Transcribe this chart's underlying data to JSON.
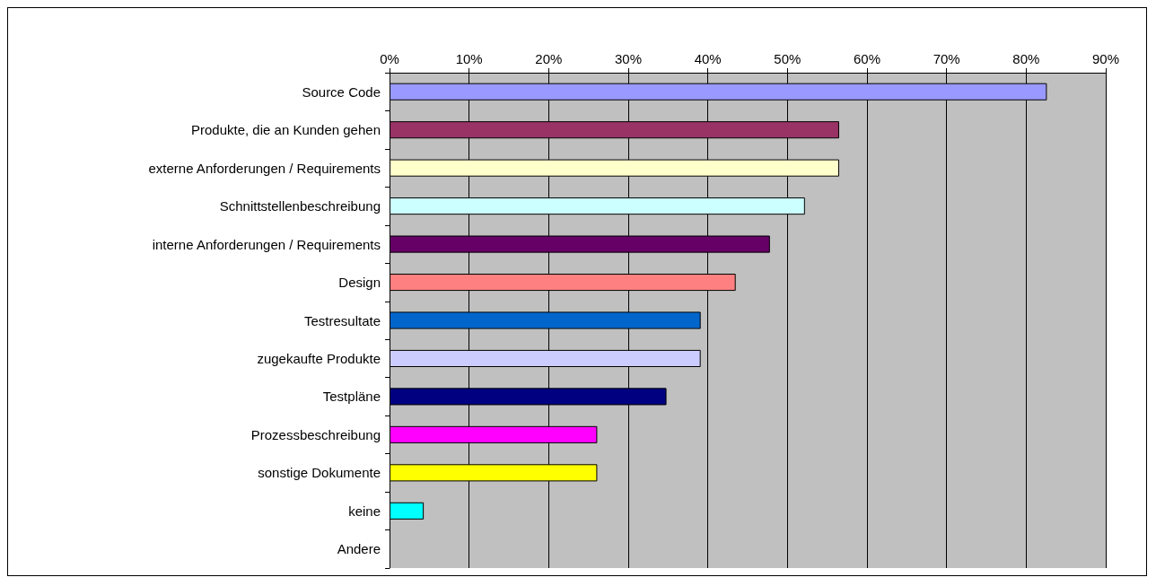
{
  "chart_data": {
    "type": "bar",
    "orientation": "horizontal",
    "categories": [
      "Source Code",
      "Produkte, die an Kunden gehen",
      "externe Anforderungen / Requirements",
      "Schnittstellenbeschreibung",
      "interne Anforderungen / Requirements",
      "Design",
      "Testresultate",
      "zugekaufte Produkte",
      "Testpläne",
      "Prozessbeschreibung",
      "sonstige Dokumente",
      "keine",
      "Andere"
    ],
    "values": [
      82.6,
      56.5,
      56.5,
      52.2,
      47.8,
      43.5,
      39.1,
      39.1,
      34.8,
      26.1,
      26.1,
      4.3,
      0
    ],
    "colors": [
      "#9999ff",
      "#993366",
      "#ffffcc",
      "#ccffff",
      "#660066",
      "#ff8080",
      "#0066cc",
      "#ccccff",
      "#000080",
      "#ff00ff",
      "#ffff00",
      "#00ffff",
      null
    ],
    "xlim": [
      0,
      90
    ],
    "xticks": [
      {
        "value": 0,
        "label": "0%"
      },
      {
        "value": 10,
        "label": "10%"
      },
      {
        "value": 20,
        "label": "20%"
      },
      {
        "value": 30,
        "label": "30%"
      },
      {
        "value": 40,
        "label": "40%"
      },
      {
        "value": 50,
        "label": "50%"
      },
      {
        "value": 60,
        "label": "60%"
      },
      {
        "value": 70,
        "label": "70%"
      },
      {
        "value": 80,
        "label": "80%"
      },
      {
        "value": 90,
        "label": "90%"
      }
    ],
    "grid": "x"
  }
}
